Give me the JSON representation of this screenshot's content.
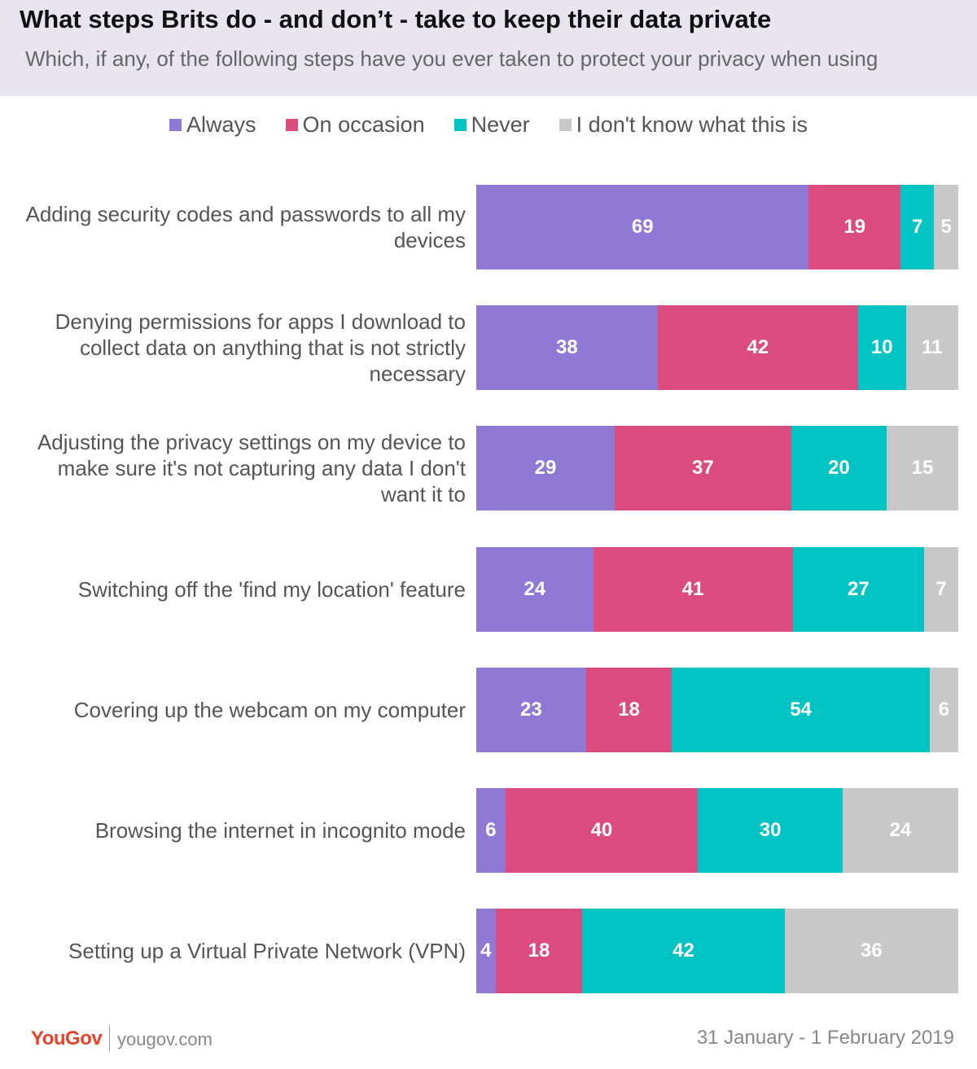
{
  "header": {
    "title": "What steps Brits do - and don’t - take to keep their data private",
    "subtitle": "Which, if any, of the following steps have you ever taken to protect your privacy when using"
  },
  "chart_data": {
    "type": "bar",
    "orientation": "horizontal",
    "stacked": true,
    "legend_position": "top-center",
    "xlim": [
      0,
      100
    ],
    "grid": false,
    "colors": [
      "#8e79d4",
      "#dc4b7e",
      "#00c4c3",
      "#c8c8c8"
    ],
    "categories": [
      "Adding security codes and passwords to all my devices",
      "Denying permissions for apps I download to collect data on anything that is not strictly necessary",
      "Adjusting the privacy settings on my device to make sure it's not capturing any data I don't want it to",
      "Switching off the 'find my location' feature",
      "Covering up the webcam on my computer",
      "Browsing the internet in incognito mode",
      "Setting up a Virtual Private Network (VPN)"
    ],
    "series": [
      {
        "name": "Always",
        "values": [
          69,
          38,
          29,
          24,
          23,
          6,
          4
        ]
      },
      {
        "name": "On occasion",
        "values": [
          19,
          42,
          37,
          41,
          18,
          40,
          18
        ]
      },
      {
        "name": "Never",
        "values": [
          7,
          10,
          20,
          27,
          54,
          30,
          42
        ]
      },
      {
        "name": "I don't know what this is",
        "values": [
          5,
          11,
          15,
          7,
          6,
          24,
          36
        ]
      }
    ]
  },
  "footer": {
    "logo": "YouGov",
    "url": "yougov.com",
    "date": "31 January - 1 February 2019"
  }
}
